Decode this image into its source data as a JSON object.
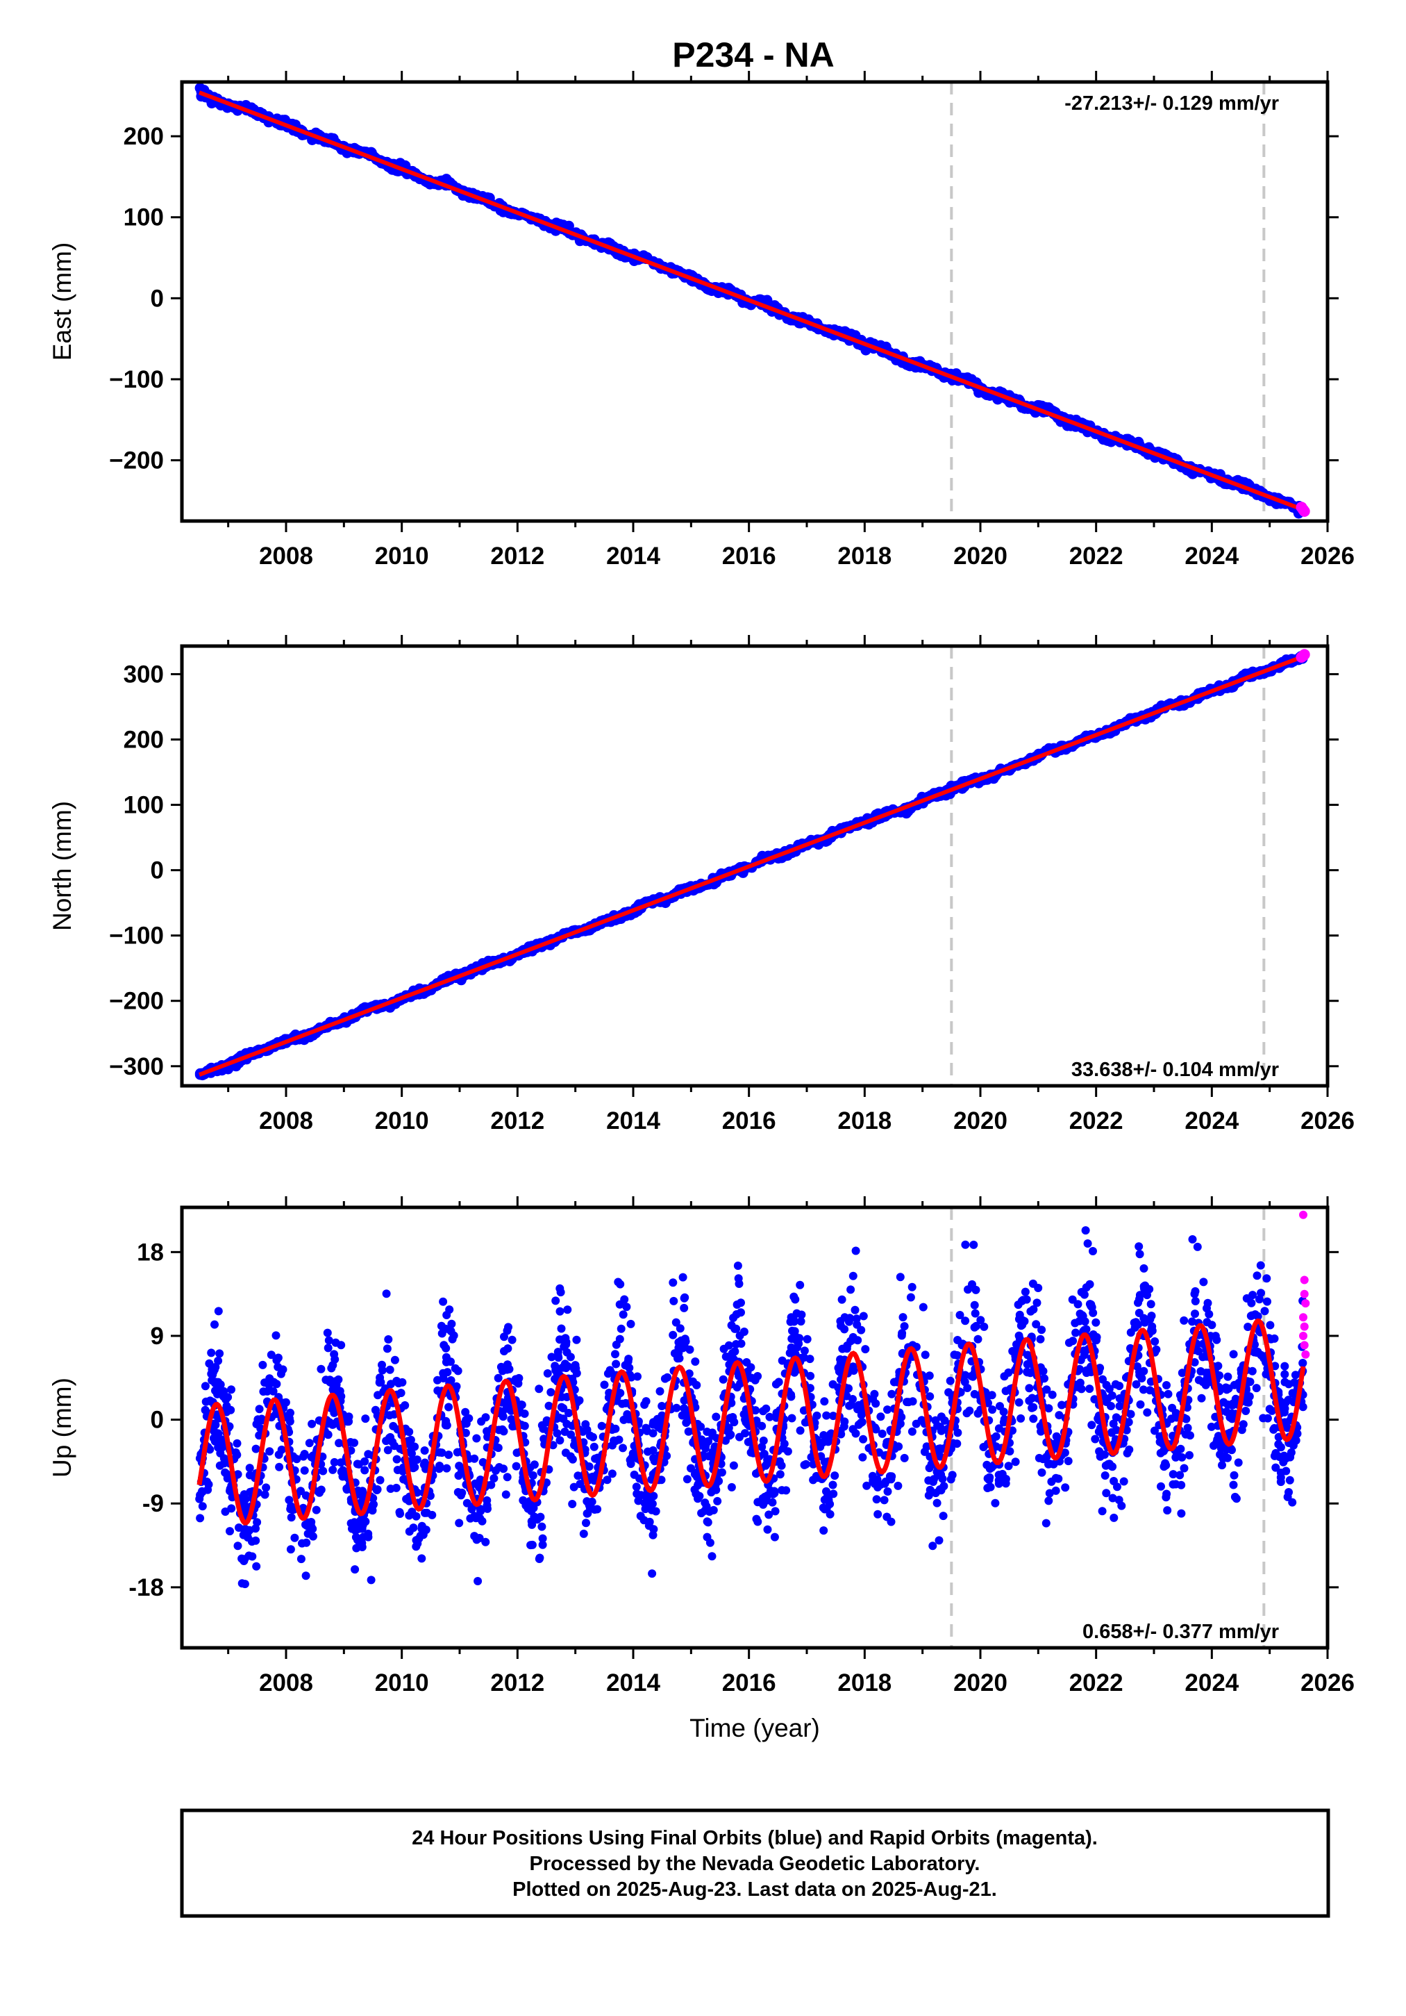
{
  "title": "P234 - NA",
  "colors": {
    "final": "#0000ff",
    "rapid": "#ff00ff",
    "model": "#ff0000",
    "dashed": "#c8c8c8"
  },
  "chart_data": [
    {
      "type": "scatter",
      "ylabel": "East (mm)",
      "xlabel": "",
      "xlim": [
        2006.2,
        2026.0
      ],
      "ylim": [
        -275,
        267
      ],
      "yticks": [
        -200,
        -100,
        0,
        100,
        200
      ],
      "ytick_labels": [
        "−200",
        "−100",
        "0",
        "100",
        "200"
      ],
      "xticks": [
        2008,
        2010,
        2012,
        2014,
        2016,
        2018,
        2020,
        2022,
        2024,
        2026
      ],
      "rate": "-27.213+/- 0.129 mm/yr",
      "rate_position": "top-right",
      "dashed_lines": [
        2019.5,
        2024.9
      ],
      "trend": [
        [
          2006.5,
          254
        ],
        [
          2025.58,
          -261
        ]
      ],
      "rapid_points": [
        [
          2025.55,
          -258
        ],
        [
          2025.58,
          -261
        ],
        [
          2025.6,
          -263
        ]
      ],
      "seasonal_amplitude": 0
    },
    {
      "type": "scatter",
      "ylabel": "North (mm)",
      "xlabel": "",
      "xlim": [
        2006.2,
        2026.0
      ],
      "ylim": [
        -330,
        343
      ],
      "yticks": [
        -300,
        -200,
        -100,
        0,
        100,
        200,
        300
      ],
      "ytick_labels": [
        "−300",
        "−200",
        "−100",
        "0",
        "100",
        "200",
        "300"
      ],
      "xticks": [
        2008,
        2010,
        2012,
        2014,
        2016,
        2018,
        2020,
        2022,
        2024,
        2026
      ],
      "rate": "33.638+/- 0.104 mm/yr",
      "rate_position": "bottom-right",
      "dashed_lines": [
        2019.5,
        2024.9
      ],
      "trend": [
        [
          2006.5,
          -313
        ],
        [
          2025.58,
          327
        ]
      ],
      "rapid_points": [
        [
          2025.55,
          326
        ],
        [
          2025.58,
          328
        ],
        [
          2025.6,
          330
        ]
      ],
      "seasonal_amplitude": 0
    },
    {
      "type": "scatter",
      "ylabel": "Up (mm)",
      "xlabel": "Time (year)",
      "xlim": [
        2006.2,
        2026.0
      ],
      "ylim": [
        -24.5,
        22.8
      ],
      "yticks": [
        -18,
        -9,
        0,
        9,
        18
      ],
      "ytick_labels": [
        "-18",
        "-9",
        "0",
        "9",
        "18"
      ],
      "xticks": [
        2008,
        2010,
        2012,
        2014,
        2016,
        2018,
        2020,
        2022,
        2024,
        2026
      ],
      "rate": "0.658+/- 0.377 mm/yr",
      "rate_position": "bottom-right",
      "dashed_lines": [
        2019.5,
        2024.9
      ],
      "trend": [
        [
          2006.5,
          -5.0
        ],
        [
          2025.58,
          4.5
        ]
      ],
      "seasonal_amplitude": 6.5,
      "seasonal_peak_phase": 0.8,
      "rapid_points": [
        [
          2025.58,
          22
        ],
        [
          2025.6,
          15
        ],
        [
          2025.6,
          13.5
        ],
        [
          2025.62,
          12.5
        ],
        [
          2025.58,
          11
        ],
        [
          2025.6,
          10
        ],
        [
          2025.58,
          9
        ],
        [
          2025.6,
          8
        ],
        [
          2025.62,
          7
        ]
      ]
    }
  ],
  "footer": {
    "line1": "24 Hour Positions Using Final Orbits (blue) and Rapid Orbits (magenta).",
    "line2": "Processed by the Nevada Geodetic Laboratory.",
    "line3": "Plotted on 2025-Aug-23. Last data on 2025-Aug-21."
  }
}
